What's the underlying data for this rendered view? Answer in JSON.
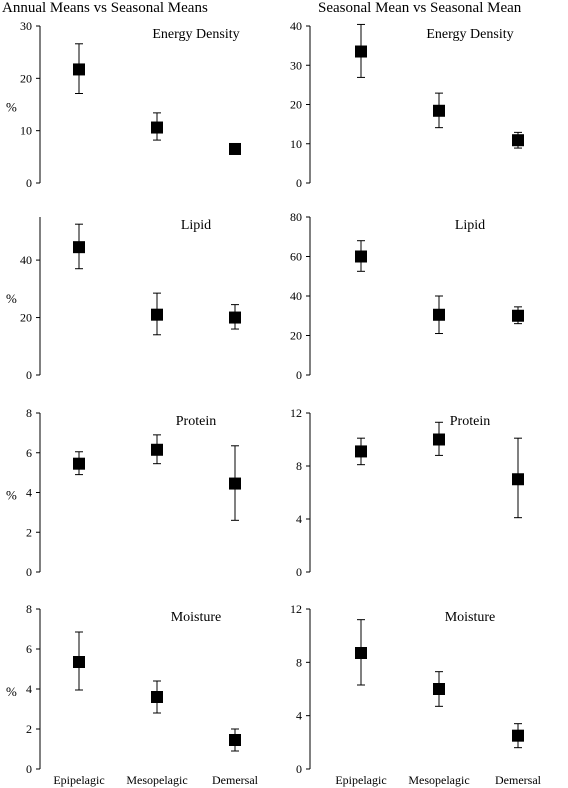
{
  "column_titles": [
    "Annual Means vs Seasonal Means",
    "Seasonal Mean vs Seasonal Mean"
  ],
  "colors": {
    "marker": "#000000",
    "axis": "#000000"
  },
  "chart_data": [
    {
      "type": "scatter",
      "title": "Energy Density",
      "ylabel": "%",
      "categories": [
        "Epipelagic",
        "Mesopelagic",
        "Demersal"
      ],
      "ylim": [
        0,
        30
      ],
      "yticks": [
        0,
        10,
        20,
        30
      ],
      "values": [
        21.7,
        10.6,
        6.5
      ],
      "error_low": [
        17.1,
        8.2,
        5.9
      ],
      "error_high": [
        26.6,
        13.4,
        7.2
      ]
    },
    {
      "type": "scatter",
      "title": "Energy Density",
      "ylabel": "",
      "categories": [
        "Epipelagic",
        "Mesopelagic",
        "Demersal"
      ],
      "ylim": [
        0,
        40
      ],
      "yticks": [
        0,
        10,
        20,
        30,
        40
      ],
      "values": [
        33.5,
        18.4,
        10.9
      ],
      "error_low": [
        26.9,
        14.1,
        8.9
      ],
      "error_high": [
        40.4,
        22.9,
        12.9
      ]
    },
    {
      "type": "scatter",
      "title": "Lipid",
      "ylabel": "%",
      "categories": [
        "Epipelagic",
        "Mesopelagic",
        "Demersal"
      ],
      "ylim": [
        0,
        55
      ],
      "yticks": [
        0,
        20,
        40
      ],
      "values": [
        44.5,
        21.0,
        20.0
      ],
      "error_low": [
        37.0,
        14.0,
        16.0
      ],
      "error_high": [
        52.5,
        28.5,
        24.5
      ]
    },
    {
      "type": "scatter",
      "title": "Lipid",
      "ylabel": "",
      "categories": [
        "Epipelagic",
        "Mesopelagic",
        "Demersal"
      ],
      "ylim": [
        0,
        80
      ],
      "yticks": [
        0,
        20,
        40,
        60,
        80
      ],
      "values": [
        60.0,
        30.5,
        30.0
      ],
      "error_low": [
        52.5,
        21.0,
        26.0
      ],
      "error_high": [
        68.0,
        40.0,
        34.5
      ]
    },
    {
      "type": "scatter",
      "title": "Protein",
      "ylabel": "%",
      "categories": [
        "Epipelagic",
        "Mesopelagic",
        "Demersal"
      ],
      "ylim": [
        0,
        8
      ],
      "yticks": [
        0,
        2,
        4,
        6,
        8
      ],
      "values": [
        5.45,
        6.15,
        4.45
      ],
      "error_low": [
        4.9,
        5.45,
        2.6
      ],
      "error_high": [
        6.05,
        6.9,
        6.35
      ]
    },
    {
      "type": "scatter",
      "title": "Protein",
      "ylabel": "",
      "categories": [
        "Epipelagic",
        "Mesopelagic",
        "Demersal"
      ],
      "ylim": [
        0,
        12
      ],
      "yticks": [
        0,
        4,
        8,
        12
      ],
      "values": [
        9.1,
        10.0,
        7.0
      ],
      "error_low": [
        8.1,
        8.8,
        4.1
      ],
      "error_high": [
        10.1,
        11.3,
        10.1
      ]
    },
    {
      "type": "scatter",
      "title": "Moisture",
      "ylabel": "%",
      "categories": [
        "Epipelagic",
        "Mesopelagic",
        "Demersal"
      ],
      "ylim": [
        0,
        8
      ],
      "yticks": [
        0,
        2,
        4,
        6,
        8
      ],
      "values": [
        5.35,
        3.6,
        1.45
      ],
      "error_low": [
        3.95,
        2.8,
        0.9
      ],
      "error_high": [
        6.85,
        4.4,
        2.0
      ]
    },
    {
      "type": "scatter",
      "title": "Moisture",
      "ylabel": "",
      "categories": [
        "Epipelagic",
        "Mesopelagic",
        "Demersal"
      ],
      "ylim": [
        0,
        12
      ],
      "yticks": [
        0,
        4,
        8,
        12
      ],
      "values": [
        8.7,
        6.0,
        2.5
      ],
      "error_low": [
        6.3,
        4.7,
        1.6
      ],
      "error_high": [
        11.2,
        7.3,
        3.4
      ]
    }
  ]
}
